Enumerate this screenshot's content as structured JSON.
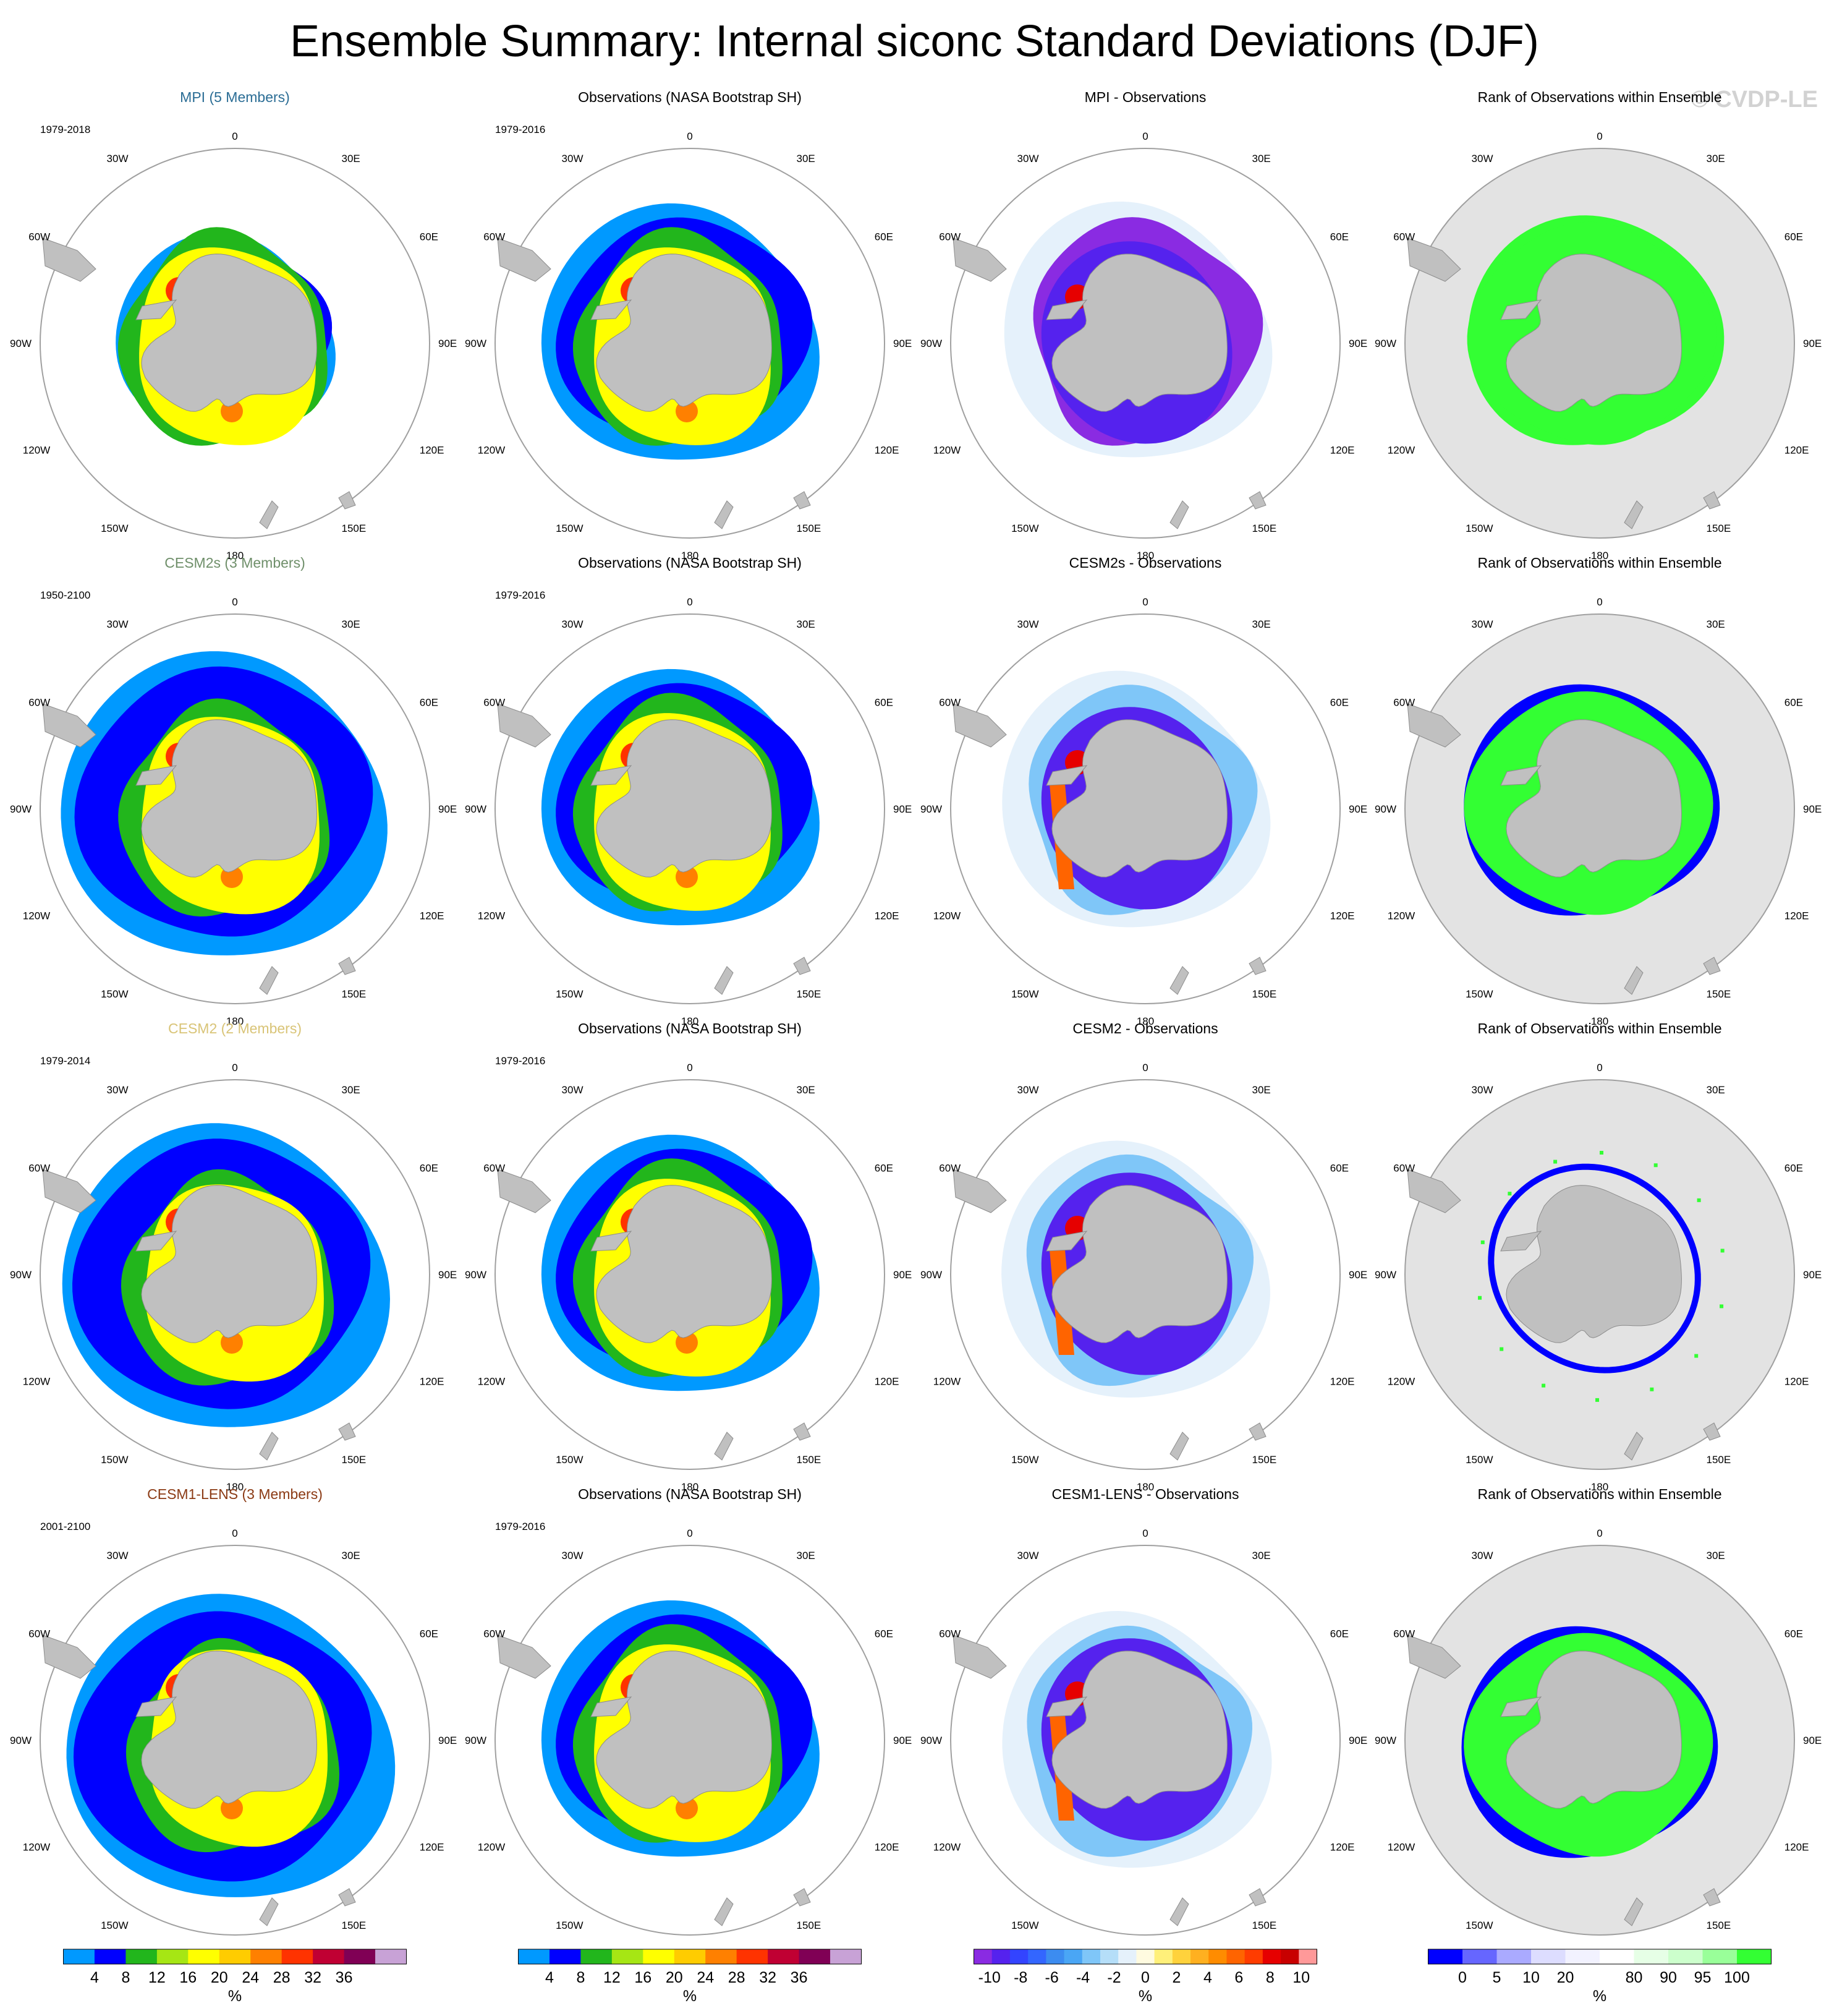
{
  "title": "Ensemble Summary: Internal siconc Standard Deviations (DJF)",
  "copyright": "© CVDP-LE",
  "colors": {
    "land": "#c0c0c0",
    "ocean": "#ffffff",
    "rank_background": "#e3e3e3",
    "map_border": "#a0a0a0",
    "model_title_colors": {
      "MPI": "#2b6d95",
      "CESM2s": "#6f8f6a",
      "CESM2": "#d9c477",
      "CESM1-LENS": "#8b3a14"
    }
  },
  "map_labels": {
    "longitudes": [
      "0",
      "30E",
      "60E",
      "90E",
      "120E",
      "150E",
      "180",
      "150W",
      "120W",
      "90W",
      "60W",
      "30W"
    ]
  },
  "rows": [
    {
      "model_title": "MPI (5 Members)",
      "model_color": "#2b6d95",
      "model_years": "1979-2018",
      "obs_title": "Observations (NASA Bootstrap SH)",
      "obs_years": "1979-2016",
      "diff_title": "MPI - Observations",
      "rank_title": "Rank of Observations within Ensemble"
    },
    {
      "model_title": "CESM2s (3 Members)",
      "model_color": "#6f8f6a",
      "model_years": "1950-2100",
      "obs_title": "Observations (NASA Bootstrap SH)",
      "obs_years": "1979-2016",
      "diff_title": "CESM2s - Observations",
      "rank_title": "Rank of Observations within Ensemble"
    },
    {
      "model_title": "CESM2 (2 Members)",
      "model_color": "#d9c477",
      "model_years": "1979-2014",
      "obs_title": "Observations (NASA Bootstrap SH)",
      "obs_years": "1979-2016",
      "diff_title": "CESM2 - Observations",
      "rank_title": "Rank of Observations within Ensemble"
    },
    {
      "model_title": "CESM1-LENS (3 Members)",
      "model_color": "#8b3a14",
      "model_years": "2001-2100",
      "obs_title": "Observations (NASA Bootstrap SH)",
      "obs_years": "1979-2016",
      "diff_title": "CESM1-LENS - Observations",
      "rank_title": "Rank of Observations within Ensemble"
    }
  ],
  "colorbars": [
    {
      "unit": "%",
      "colors": [
        "#0099ff",
        "#0000ff",
        "#22b61c",
        "#a6e614",
        "#ffff00",
        "#ffcc00",
        "#ff8000",
        "#ff3300",
        "#c00033",
        "#800055",
        "#c8a2d6"
      ],
      "labels": [
        "4",
        "8",
        "12",
        "16",
        "20",
        "24",
        "28",
        "32",
        "36"
      ]
    },
    {
      "unit": "%",
      "colors": [
        "#0099ff",
        "#0000ff",
        "#22b61c",
        "#a6e614",
        "#ffff00",
        "#ffcc00",
        "#ff8000",
        "#ff3300",
        "#c00033",
        "#800055",
        "#c8a2d6"
      ],
      "labels": [
        "4",
        "8",
        "12",
        "16",
        "20",
        "24",
        "28",
        "32",
        "36"
      ]
    },
    {
      "unit": "%",
      "colors": [
        "#8a2be2",
        "#5522ee",
        "#3344ff",
        "#3366ff",
        "#3c8cf0",
        "#4aa6f5",
        "#7fc6f8",
        "#b5def8",
        "#e5f1fb",
        "#fffbe0",
        "#fff07a",
        "#ffd23c",
        "#ffb020",
        "#ff8c00",
        "#ff6400",
        "#ff3c00",
        "#e60000",
        "#c80000",
        "#ff9999"
      ],
      "labels": [
        "-10",
        "-8",
        "-6",
        "-4",
        "-2",
        "0",
        "2",
        "4",
        "6",
        "8",
        "10"
      ]
    },
    {
      "unit": "%",
      "colors": [
        "#0000ff",
        "#6666ff",
        "#aaaaff",
        "#ddddff",
        "#f2f2ff",
        "#ffffff",
        "#e6ffe6",
        "#ccffcc",
        "#99ff99",
        "#33ff33"
      ],
      "labels": [
        "0",
        "5",
        "10",
        "20",
        "80",
        "90",
        "95",
        "100"
      ]
    }
  ]
}
